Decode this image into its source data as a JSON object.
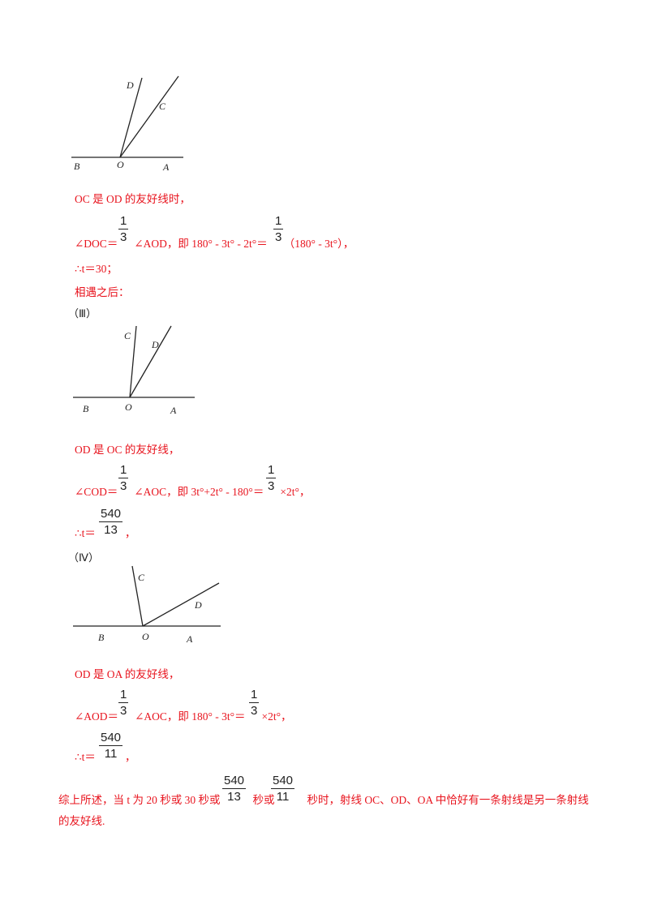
{
  "figures": [
    {
      "labels": {
        "D": "D",
        "C": "C",
        "B": "B",
        "O": "O",
        "A": "A"
      }
    },
    {
      "labels": {
        "C": "C",
        "D": "D",
        "B": "B",
        "O": "O",
        "A": "A"
      }
    },
    {
      "labels": {
        "C": "C",
        "D": "D",
        "B": "B",
        "O": "O",
        "A": "A"
      }
    }
  ],
  "case2": {
    "statement": "OC 是 OD 的友好线时，",
    "eq_prefix": "∠DOC＝",
    "eq_mid": "∠AOD，即 180° - 3t° - 2t°＝",
    "eq_suffix": "（180° - 3t°），",
    "frac1_num": "1",
    "frac1_den": "3",
    "frac2_num": "1",
    "frac2_den": "3",
    "result": "∴t＝30；"
  },
  "after_meeting": "相遇之后：",
  "case3": {
    "label": "（Ⅲ）",
    "statement": "OD 是 OC 的友好线，",
    "eq_prefix": "∠COD＝",
    "eq_mid": "∠AOC，即 3t°+2t° - 180°＝",
    "eq_suffix": "×2t°，",
    "frac1_num": "1",
    "frac1_den": "3",
    "frac2_num": "1",
    "frac2_den": "3",
    "result_prefix": "∴t＝",
    "result_num": "540",
    "result_den": "13",
    "result_suffix": "，"
  },
  "case4": {
    "label": "（Ⅳ）",
    "statement": "OD 是 OA 的友好线，",
    "eq_prefix": "∠AOD＝",
    "eq_mid": "∠AOC，即 180° - 3t°＝",
    "eq_suffix": "×2t°，",
    "frac1_num": "1",
    "frac1_den": "3",
    "frac2_num": "1",
    "frac2_den": "3",
    "result_prefix": "∴t＝",
    "result_num": "540",
    "result_den": "11",
    "result_suffix": "，"
  },
  "conclusion": {
    "part1": "综上所述，当 t 为 20 秒或 30 秒或",
    "frac1_num": "540",
    "frac1_den": "13",
    "part2": "秒或",
    "frac2_num": "540",
    "frac2_den": "11",
    "part3": "秒时，射线 OC、OD、OA 中恰好有一条射线是另一条射线",
    "line2": "的友好线."
  }
}
